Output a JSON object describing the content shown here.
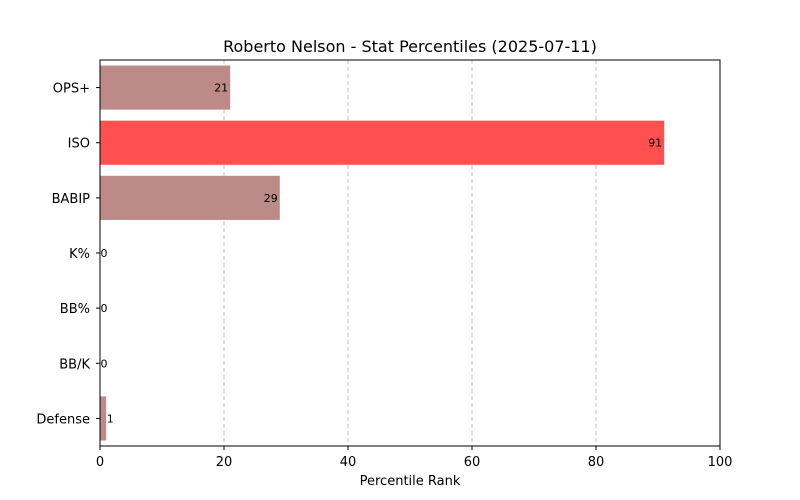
{
  "chart_data": {
    "type": "bar",
    "orientation": "horizontal",
    "title": "Roberto Nelson - Stat Percentiles (2025-07-11)",
    "xlabel": "Percentile Rank",
    "ylabel": "",
    "xlim": [
      0,
      100
    ],
    "xticks": [
      0,
      20,
      40,
      60,
      80,
      100
    ],
    "grid": "vertical dashed",
    "categories": [
      "OPS+",
      "ISO",
      "BABIP",
      "K%",
      "BB%",
      "BB/K",
      "Defense"
    ],
    "values": [
      21,
      91,
      29,
      0,
      0,
      0,
      1
    ],
    "bar_colors": [
      "#bc8a87",
      "#ff5050",
      "#bc8a87",
      "#bc8a87",
      "#bc8a87",
      "#bc8a87",
      "#bc8a87"
    ],
    "data_labels": [
      "21",
      "91",
      "29",
      "0",
      "0",
      "0",
      "1"
    ]
  }
}
